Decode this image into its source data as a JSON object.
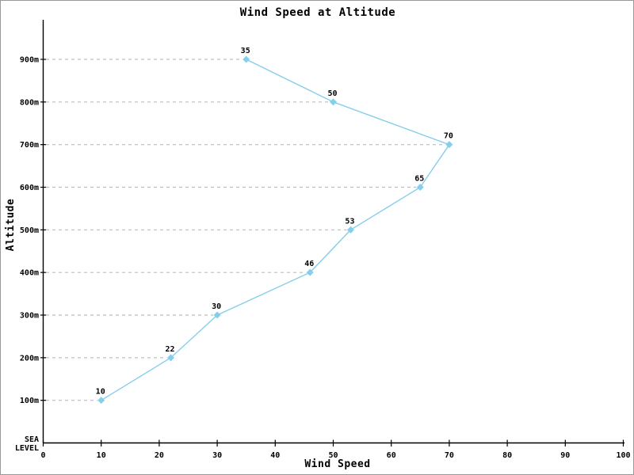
{
  "window": {
    "background_color": "#ffffff",
    "border_color": "#999999"
  },
  "chart_data": {
    "type": "line",
    "title": "Wind Speed at Altitude",
    "xlabel": "Wind Speed",
    "ylabel": "Altitude",
    "xlim": [
      0,
      100
    ],
    "x_ticks": [
      0,
      10,
      20,
      30,
      40,
      50,
      60,
      70,
      80,
      90,
      100
    ],
    "ylim_m": [
      0,
      1000
    ],
    "y_ticks": [
      {
        "altitude_m": 100,
        "label": "100m"
      },
      {
        "altitude_m": 200,
        "label": "200m"
      },
      {
        "altitude_m": 300,
        "label": "300m"
      },
      {
        "altitude_m": 400,
        "label": "400m"
      },
      {
        "altitude_m": 500,
        "label": "500m"
      },
      {
        "altitude_m": 600,
        "label": "600m"
      },
      {
        "altitude_m": 700,
        "label": "700m"
      },
      {
        "altitude_m": 800,
        "label": "800m"
      },
      {
        "altitude_m": 900,
        "label": "900m"
      }
    ],
    "sea_level_label": [
      "SEA",
      "LEVEL"
    ],
    "series": [
      {
        "name": "wind-speed-profile",
        "color": "#87CEEB",
        "marker": "diamond",
        "points": [
          {
            "x": 10,
            "altitude_m": 100,
            "label": "10"
          },
          {
            "x": 22,
            "altitude_m": 200,
            "label": "22"
          },
          {
            "x": 30,
            "altitude_m": 300,
            "label": "30"
          },
          {
            "x": 46,
            "altitude_m": 400,
            "label": "46"
          },
          {
            "x": 53,
            "altitude_m": 500,
            "label": "53"
          },
          {
            "x": 65,
            "altitude_m": 600,
            "label": "65"
          },
          {
            "x": 70,
            "altitude_m": 700,
            "label": "70"
          },
          {
            "x": 50,
            "altitude_m": 800,
            "label": "50"
          },
          {
            "x": 35,
            "altitude_m": 900,
            "label": "35"
          }
        ]
      }
    ],
    "grid": {
      "style": "dashed",
      "color": "#bdbdbd",
      "extent": "axis-to-data-point",
      "orientation": "horizontal"
    },
    "axis_color": "#000000",
    "text_color": "#000000",
    "legend_position": "none"
  }
}
